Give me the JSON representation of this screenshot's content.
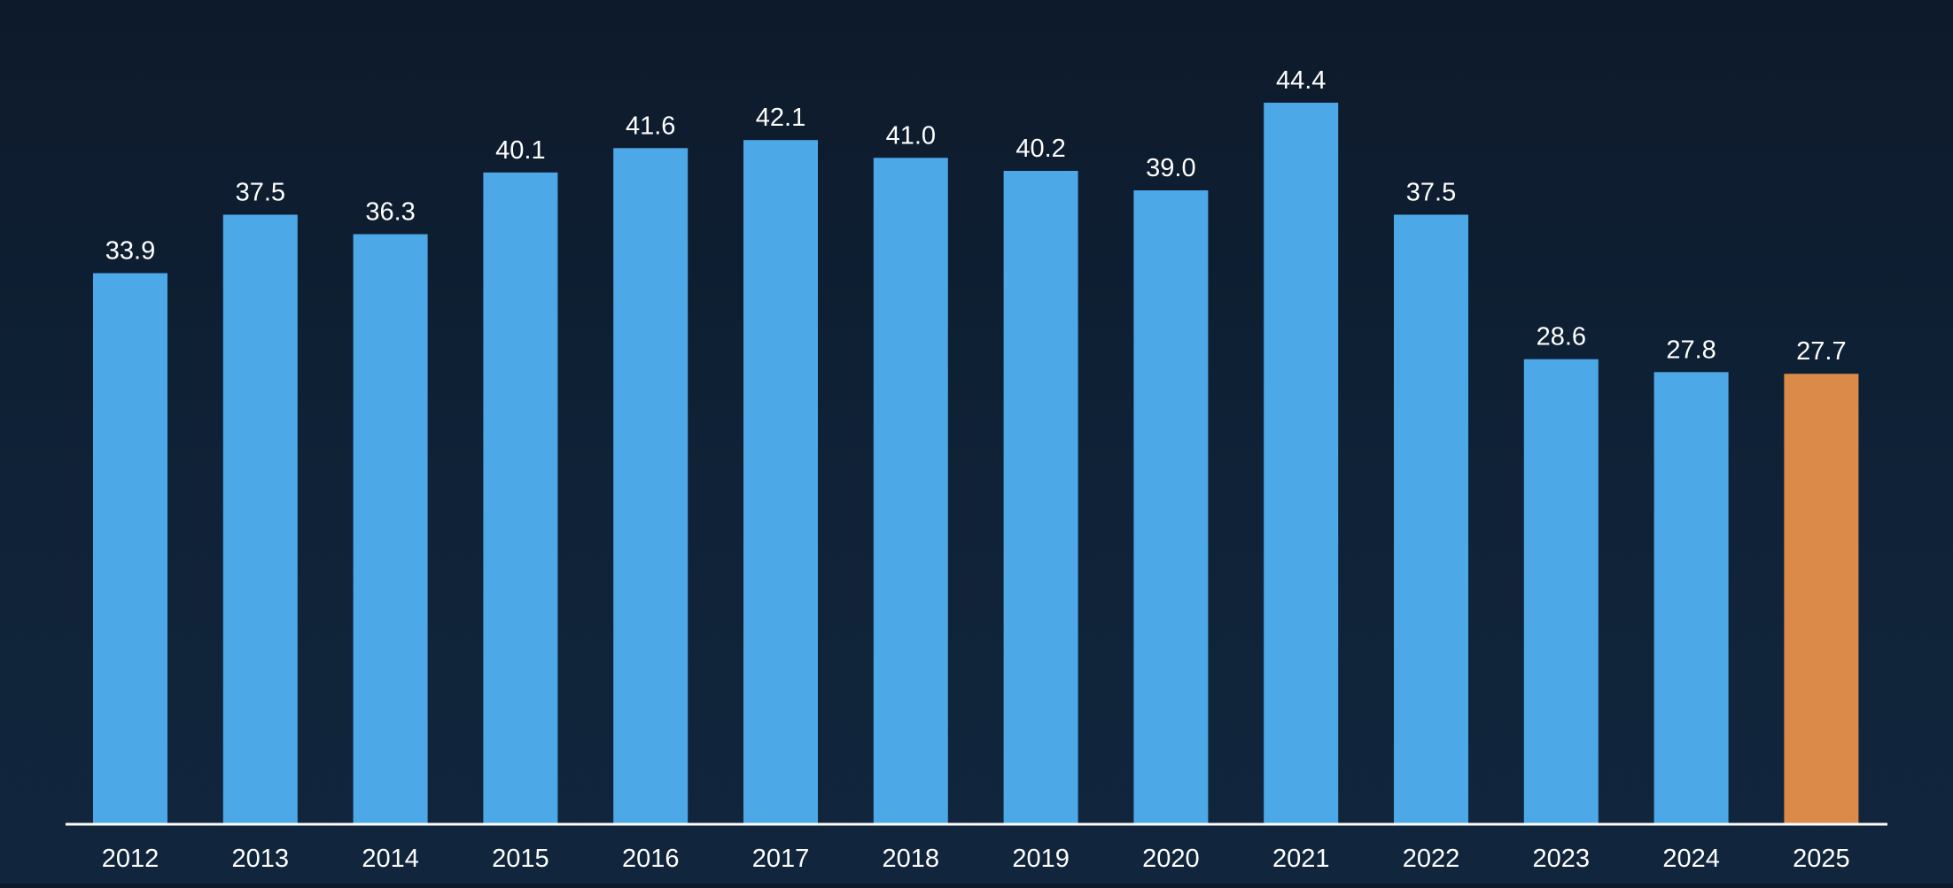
{
  "chart_data": {
    "type": "bar",
    "categories": [
      "2012",
      "2013",
      "2014",
      "2015",
      "2016",
      "2017",
      "2018",
      "2019",
      "2020",
      "2021",
      "2022",
      "2023",
      "2024",
      "2025"
    ],
    "values": [
      33.9,
      37.5,
      36.3,
      40.1,
      41.6,
      42.1,
      41.0,
      40.2,
      39.0,
      44.4,
      37.5,
      28.6,
      27.8,
      27.7
    ],
    "value_labels": [
      "33.9",
      "37.5",
      "36.3",
      "40.1",
      "41.6",
      "42.1",
      "41.0",
      "40.2",
      "39.0",
      "44.4",
      "37.5",
      "28.6",
      "27.8",
      "27.7"
    ],
    "highlighted_category": "2025",
    "ylim": [
      0,
      44.4
    ],
    "grid": false,
    "legend": "none"
  },
  "colors": {
    "background": "#0f2136",
    "bar": "#4da8e8",
    "bar_highlight": "#dc8a4a",
    "text": "#ffffff",
    "axis": "#ffffff"
  }
}
